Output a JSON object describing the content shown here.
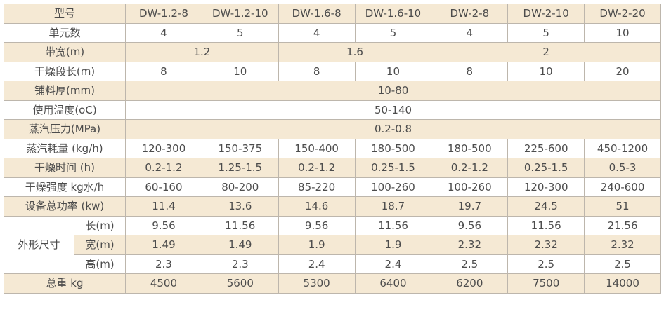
{
  "colors": {
    "stripe": "#f5e9d4",
    "row_bg": "#ffffff",
    "border": "#bdb6ac",
    "outer_border": "#a0a0a0",
    "text": "#4c4c4c",
    "page_bg": "#ffffff"
  },
  "table": {
    "description": "DW series belt dryer technical specification table",
    "rows": [
      {
        "cells": [
          {
            "t": "型号",
            "cs": 2,
            "name": "row-label-cell"
          },
          {
            "t": "DW-1.2-8",
            "name": "model-header-cell"
          },
          {
            "t": "DW-1.2-10",
            "name": "model-header-cell"
          },
          {
            "t": "DW-1.6-8",
            "name": "model-header-cell"
          },
          {
            "t": "DW-1.6-10",
            "name": "model-header-cell"
          },
          {
            "t": "DW-2-8",
            "name": "model-header-cell"
          },
          {
            "t": "DW-2-10",
            "name": "model-header-cell"
          },
          {
            "t": "DW-2-20",
            "name": "model-header-cell"
          }
        ]
      },
      {
        "cells": [
          {
            "t": "单元数",
            "cs": 2,
            "name": "row-label-cell"
          },
          {
            "t": "4"
          },
          {
            "t": "5"
          },
          {
            "t": "4"
          },
          {
            "t": "5"
          },
          {
            "t": "4"
          },
          {
            "t": "5"
          },
          {
            "t": "10"
          }
        ]
      },
      {
        "cells": [
          {
            "t": "带宽(m)",
            "cs": 2,
            "name": "row-label-cell"
          },
          {
            "t": "1.2",
            "cs": 2
          },
          {
            "t": "1.6",
            "cs": 2
          },
          {
            "t": "2",
            "cs": 3
          }
        ]
      },
      {
        "cells": [
          {
            "t": "干燥段长(m)",
            "cs": 2,
            "name": "row-label-cell"
          },
          {
            "t": "8"
          },
          {
            "t": "10"
          },
          {
            "t": "8"
          },
          {
            "t": "10"
          },
          {
            "t": "8"
          },
          {
            "t": "10"
          },
          {
            "t": "20"
          }
        ]
      },
      {
        "cells": [
          {
            "t": "铺料厚(mm)",
            "cs": 2,
            "name": "row-label-cell"
          },
          {
            "t": "10-80",
            "cs": 7
          }
        ]
      },
      {
        "cells": [
          {
            "t": "使用温度(oC)",
            "cs": 2,
            "name": "row-label-cell"
          },
          {
            "t": "50-140",
            "cs": 7
          }
        ]
      },
      {
        "cells": [
          {
            "t": "蒸汽压力(MPa)",
            "cs": 2,
            "name": "row-label-cell"
          },
          {
            "t": "0.2-0.8",
            "cs": 7
          }
        ]
      },
      {
        "cells": [
          {
            "t": "蒸汽耗量 (kg/h)",
            "cs": 2,
            "name": "row-label-cell"
          },
          {
            "t": "120-300"
          },
          {
            "t": "150-375"
          },
          {
            "t": "150-400"
          },
          {
            "t": "180-500"
          },
          {
            "t": "180-500"
          },
          {
            "t": "225-600"
          },
          {
            "t": "450-1200"
          }
        ]
      },
      {
        "cells": [
          {
            "t": "干燥时间 (h)",
            "cs": 2,
            "name": "row-label-cell"
          },
          {
            "t": "0.2-1.2"
          },
          {
            "t": "1.25-1.5"
          },
          {
            "t": "0.2-1.2"
          },
          {
            "t": "0.25-1.5"
          },
          {
            "t": "0.2-1.2"
          },
          {
            "t": "0.25-1.5"
          },
          {
            "t": "0.5-3"
          }
        ]
      },
      {
        "cells": [
          {
            "t": "干燥强度 kg水/h",
            "cs": 2,
            "name": "row-label-cell"
          },
          {
            "t": "60-160"
          },
          {
            "t": "80-200"
          },
          {
            "t": "85-220"
          },
          {
            "t": "100-260"
          },
          {
            "t": "100-260"
          },
          {
            "t": "120-300"
          },
          {
            "t": "240-600"
          }
        ]
      },
      {
        "cells": [
          {
            "t": "设备总功率 (kw)",
            "cs": 2,
            "name": "row-label-cell"
          },
          {
            "t": "11.4"
          },
          {
            "t": "13.6"
          },
          {
            "t": "14.6"
          },
          {
            "t": "18.7"
          },
          {
            "t": "19.7"
          },
          {
            "t": "24.5"
          },
          {
            "t": "51"
          }
        ]
      },
      {
        "cells": [
          {
            "t": "外形尺寸",
            "rs": 3,
            "name": "row-label-cell"
          },
          {
            "t": "长(m)",
            "name": "dim-label-cell"
          },
          {
            "t": "9.56"
          },
          {
            "t": "11.56"
          },
          {
            "t": "9.56"
          },
          {
            "t": "11.56"
          },
          {
            "t": "9.56"
          },
          {
            "t": "11.56"
          },
          {
            "t": "21.56"
          }
        ]
      },
      {
        "cells": [
          {
            "t": "宽(m)",
            "name": "dim-label-cell"
          },
          {
            "t": "1.49"
          },
          {
            "t": "1.49"
          },
          {
            "t": "1.9"
          },
          {
            "t": "1.9"
          },
          {
            "t": "2.32"
          },
          {
            "t": "2.32"
          },
          {
            "t": "2.32"
          }
        ]
      },
      {
        "cells": [
          {
            "t": "高(m)",
            "name": "dim-label-cell"
          },
          {
            "t": "2.3"
          },
          {
            "t": "2.3"
          },
          {
            "t": "2.4"
          },
          {
            "t": "2.4"
          },
          {
            "t": "2.5"
          },
          {
            "t": "2.5"
          },
          {
            "t": "2.5"
          }
        ]
      },
      {
        "cells": [
          {
            "t": "总重 kg",
            "cs": 2,
            "name": "row-label-cell"
          },
          {
            "t": "4500"
          },
          {
            "t": "5600"
          },
          {
            "t": "5300"
          },
          {
            "t": "6400"
          },
          {
            "t": "6200"
          },
          {
            "t": "7500"
          },
          {
            "t": "14000"
          }
        ]
      }
    ]
  }
}
